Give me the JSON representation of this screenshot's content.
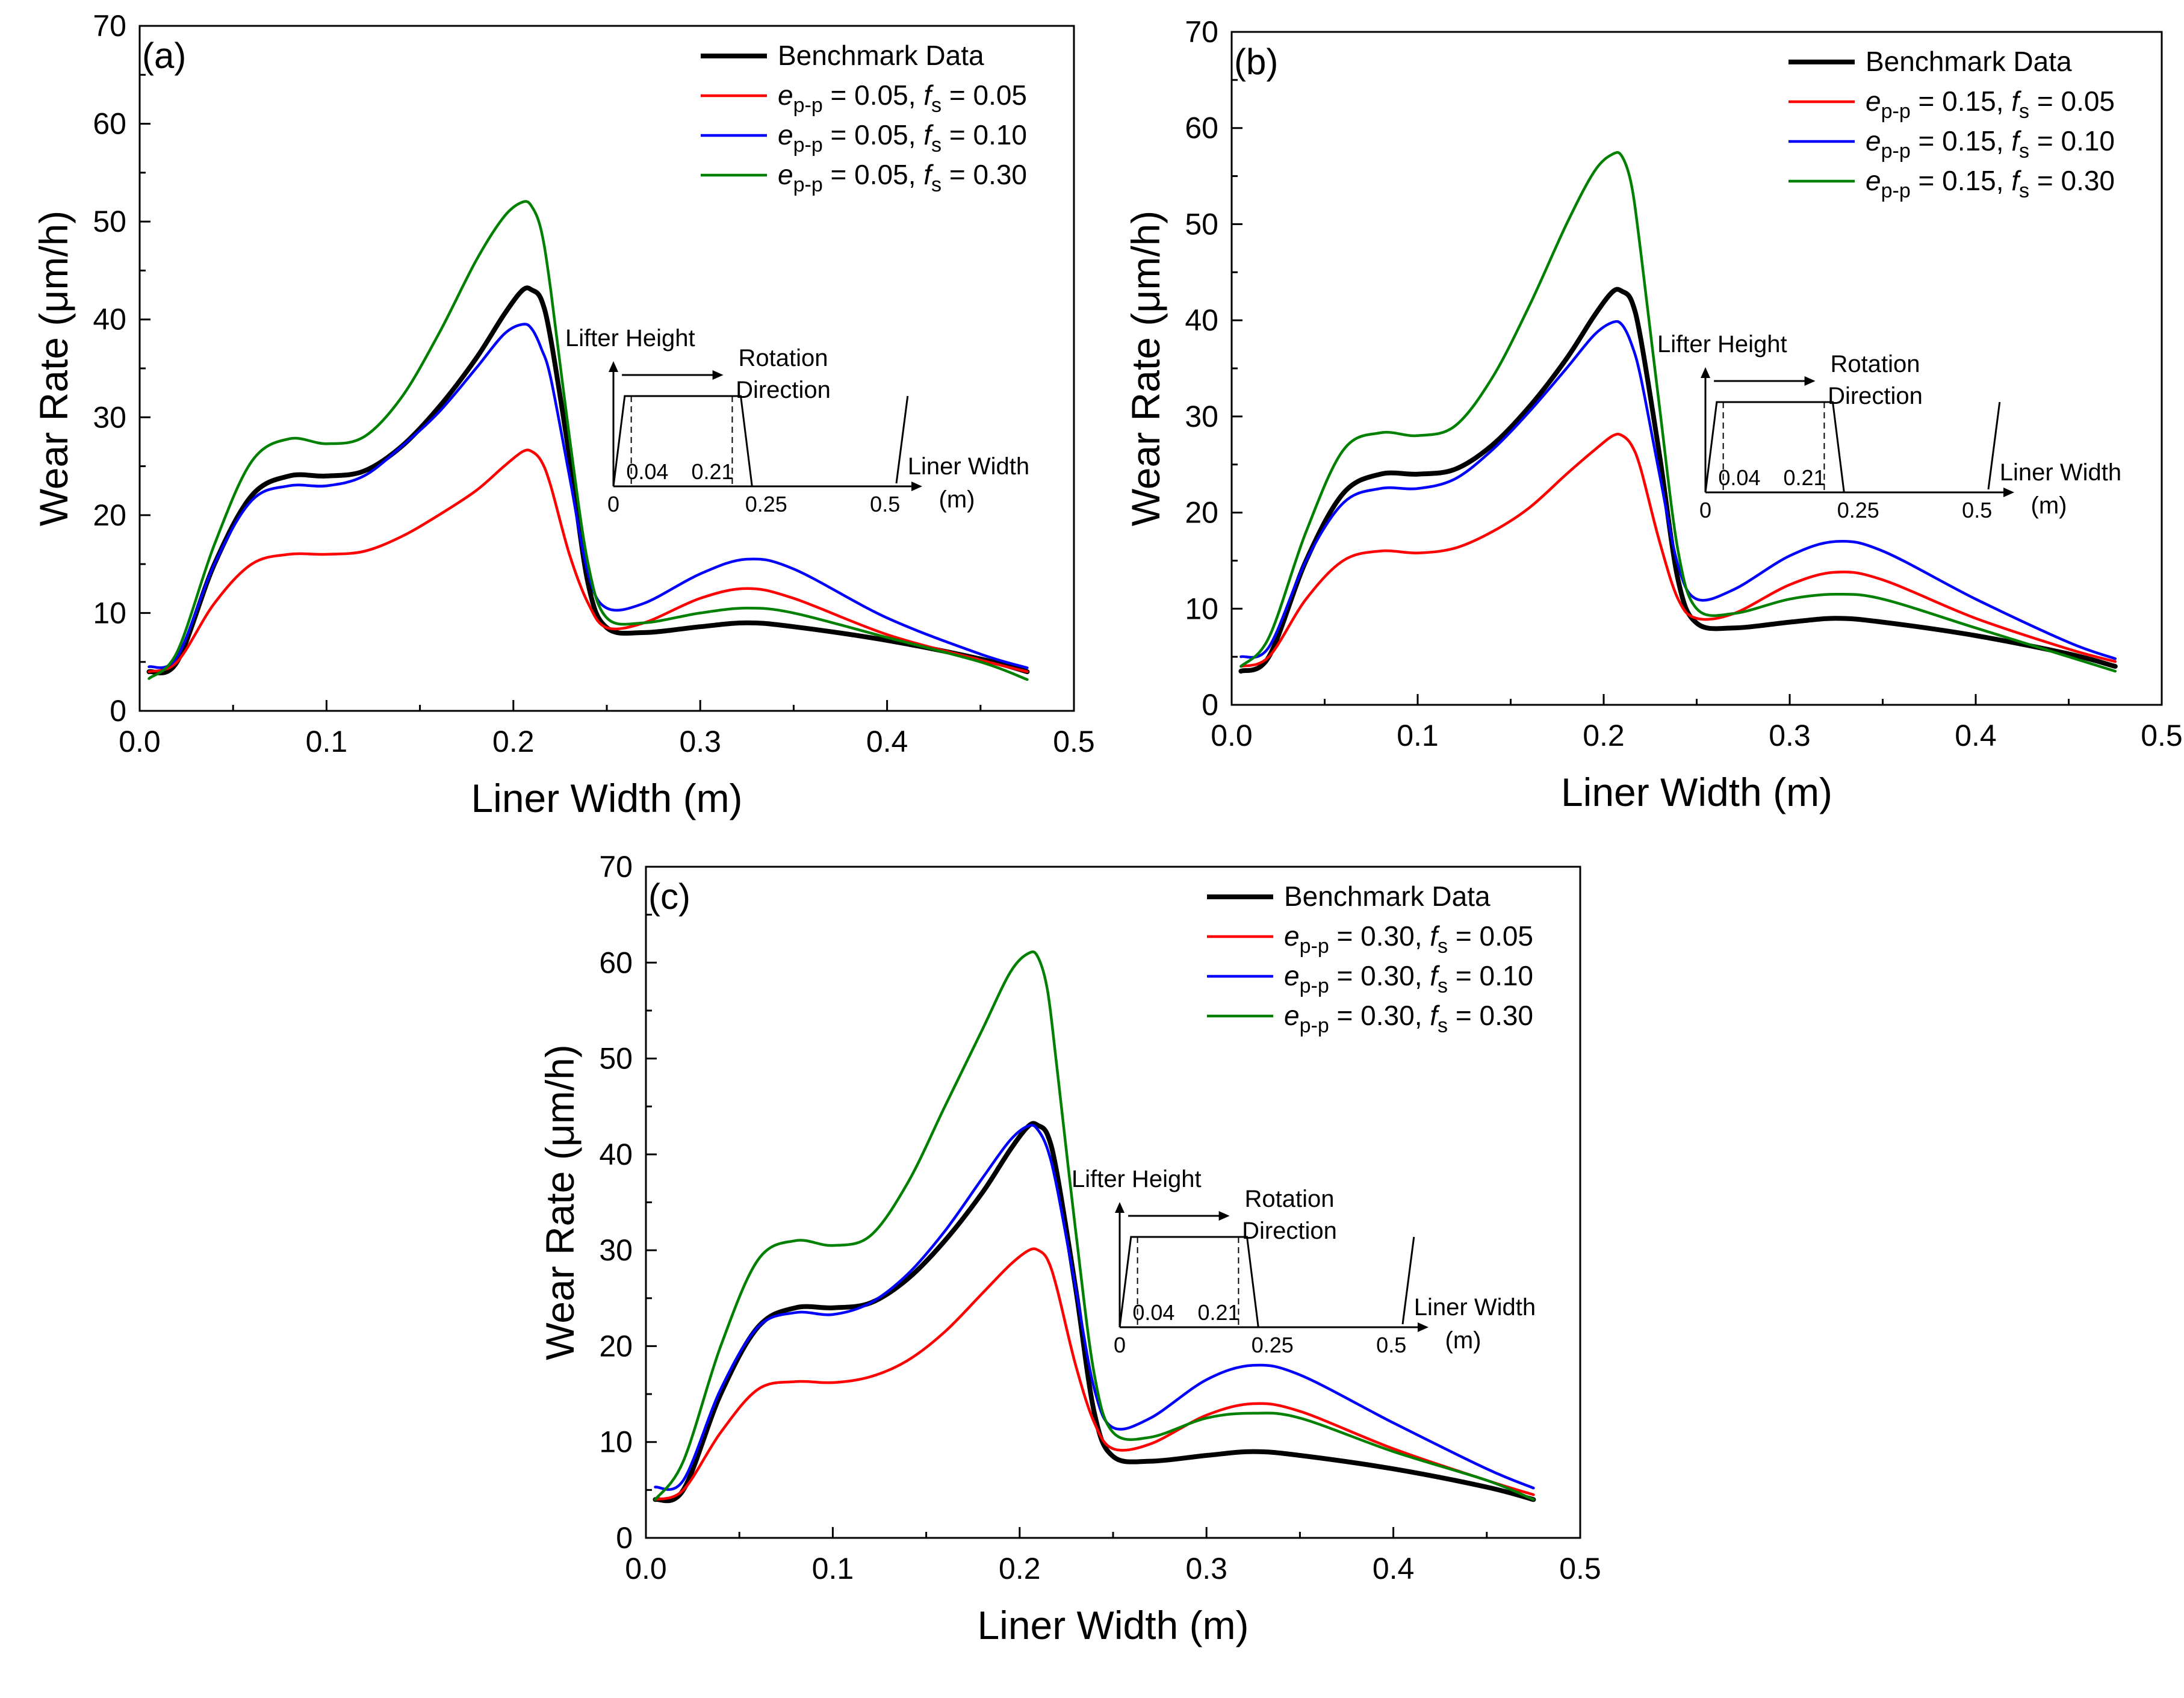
{
  "chart_data": [
    {
      "type": "line",
      "panel_label": "(a)",
      "xlabel": "Liner Width (m)",
      "ylabel": "Wear Rate (μm/h)",
      "xlim": [
        0,
        0.5
      ],
      "ylim": [
        0,
        70
      ],
      "x_ticks": [
        "0.0",
        "0.1",
        "0.2",
        "0.3",
        "0.4",
        "0.5"
      ],
      "y_ticks": [
        "0",
        "10",
        "20",
        "30",
        "40",
        "50",
        "60",
        "70"
      ],
      "legend_position": "top-right",
      "series": [
        {
          "name": "Benchmark Data",
          "e_value": "",
          "fs_value": "",
          "color": "#000000",
          "x": [
            0.005,
            0.02,
            0.04,
            0.06,
            0.08,
            0.1,
            0.12,
            0.14,
            0.16,
            0.18,
            0.195,
            0.205,
            0.21,
            0.215,
            0.22,
            0.23,
            0.24,
            0.25,
            0.27,
            0.3,
            0.325,
            0.35,
            0.4,
            0.45,
            0.475
          ],
          "y": [
            4,
            5,
            15,
            22,
            24,
            24,
            24.5,
            27,
            31,
            36,
            40.5,
            43,
            43,
            42,
            38,
            26,
            13,
            8.5,
            8,
            8.6,
            9,
            8.6,
            7.2,
            5.3,
            4
          ]
        },
        {
          "name": "",
          "e_value": "0.05",
          "fs_value": "0.05",
          "color": "#ff0000",
          "x": [
            0.005,
            0.02,
            0.04,
            0.06,
            0.08,
            0.1,
            0.12,
            0.14,
            0.16,
            0.18,
            0.195,
            0.205,
            0.21,
            0.215,
            0.22,
            0.23,
            0.24,
            0.25,
            0.27,
            0.3,
            0.325,
            0.35,
            0.4,
            0.45,
            0.475
          ],
          "y": [
            4,
            5,
            11,
            15,
            16,
            16,
            16.3,
            17.8,
            20,
            22.5,
            25,
            26.5,
            26.5,
            25.5,
            23,
            16,
            11,
            8.5,
            9,
            11.5,
            12.5,
            11.5,
            7.8,
            5.2,
            4
          ]
        },
        {
          "name": "",
          "e_value": "0.05",
          "fs_value": "0.10",
          "color": "#0000ff",
          "x": [
            0.005,
            0.02,
            0.04,
            0.06,
            0.08,
            0.1,
            0.12,
            0.14,
            0.16,
            0.18,
            0.195,
            0.205,
            0.21,
            0.215,
            0.22,
            0.23,
            0.24,
            0.25,
            0.27,
            0.3,
            0.325,
            0.35,
            0.4,
            0.45,
            0.475
          ],
          "y": [
            4.5,
            5.5,
            15,
            21.5,
            23,
            23,
            24,
            27,
            30.5,
            35,
            38.5,
            39.5,
            39,
            37,
            34,
            24,
            14,
            10.5,
            11,
            14,
            15.5,
            14.5,
            9.5,
            5.8,
            4.4
          ]
        },
        {
          "name": "",
          "e_value": "0.05",
          "fs_value": "0.30",
          "color": "#008000",
          "x": [
            0.005,
            0.02,
            0.04,
            0.06,
            0.08,
            0.1,
            0.12,
            0.14,
            0.16,
            0.18,
            0.195,
            0.205,
            0.21,
            0.215,
            0.22,
            0.23,
            0.24,
            0.25,
            0.27,
            0.3,
            0.325,
            0.35,
            0.4,
            0.45,
            0.475
          ],
          "y": [
            3.3,
            6,
            17,
            25.5,
            27.8,
            27.3,
            28,
            32,
            38.5,
            46,
            50.5,
            52,
            51.5,
            49,
            43,
            28,
            15,
            9.5,
            9,
            10,
            10.5,
            10,
            7.5,
            5,
            3.2
          ]
        }
      ],
      "inset": {
        "ylabel": "Lifter Height",
        "arrow_label_1": "Rotation",
        "arrow_label_2": "Direction",
        "xlabel_1": "Liner Width",
        "xlabel_2": "(m)",
        "tick_0": "0",
        "tick_004": "0.04",
        "tick_021": "0.21",
        "tick_025": "0.25",
        "tick_05": "0.5"
      }
    },
    {
      "type": "line",
      "panel_label": "(b)",
      "xlabel": "Liner Width (m)",
      "ylabel": "Wear Rate (μm/h)",
      "xlim": [
        0,
        0.5
      ],
      "ylim": [
        0,
        70
      ],
      "x_ticks": [
        "0.0",
        "0.1",
        "0.2",
        "0.3",
        "0.4",
        "0.5"
      ],
      "y_ticks": [
        "0",
        "10",
        "20",
        "30",
        "40",
        "50",
        "60",
        "70"
      ],
      "legend_position": "top-right",
      "series": [
        {
          "name": "Benchmark Data",
          "e_value": "",
          "fs_value": "",
          "color": "#000000",
          "x": [
            0.005,
            0.02,
            0.04,
            0.06,
            0.08,
            0.1,
            0.12,
            0.14,
            0.16,
            0.18,
            0.195,
            0.205,
            0.21,
            0.215,
            0.22,
            0.23,
            0.24,
            0.25,
            0.27,
            0.3,
            0.325,
            0.35,
            0.4,
            0.45,
            0.475
          ],
          "y": [
            3.5,
            5,
            15,
            22,
            24,
            24,
            24.5,
            27,
            31,
            36,
            40.5,
            43,
            43,
            42,
            38,
            26,
            13,
            8.5,
            8,
            8.6,
            9,
            8.6,
            7.2,
            5.3,
            4
          ]
        },
        {
          "name": "",
          "e_value": "0.15",
          "fs_value": "0.05",
          "color": "#ff0000",
          "x": [
            0.005,
            0.02,
            0.04,
            0.06,
            0.08,
            0.1,
            0.12,
            0.14,
            0.16,
            0.18,
            0.195,
            0.205,
            0.21,
            0.215,
            0.22,
            0.23,
            0.24,
            0.25,
            0.27,
            0.3,
            0.325,
            0.35,
            0.4,
            0.45,
            0.475
          ],
          "y": [
            4,
            5,
            11,
            15,
            16,
            15.8,
            16.3,
            18,
            20.5,
            24,
            26.5,
            28,
            28,
            27,
            24.5,
            17,
            11,
            9,
            9.5,
            12.5,
            13.8,
            13,
            9,
            5.8,
            4.5
          ]
        },
        {
          "name": "",
          "e_value": "0.15",
          "fs_value": "0.10",
          "color": "#0000ff",
          "x": [
            0.005,
            0.02,
            0.04,
            0.06,
            0.08,
            0.1,
            0.12,
            0.14,
            0.16,
            0.18,
            0.195,
            0.205,
            0.21,
            0.215,
            0.22,
            0.23,
            0.24,
            0.25,
            0.27,
            0.3,
            0.325,
            0.35,
            0.4,
            0.45,
            0.475
          ],
          "y": [
            5,
            6,
            15,
            21,
            22.5,
            22.5,
            23.5,
            26.5,
            30.5,
            35,
            38.5,
            39.8,
            39.5,
            37.5,
            34,
            24,
            14.5,
            11,
            12,
            15.5,
            17,
            16,
            11,
            6.5,
            4.8
          ]
        },
        {
          "name": "",
          "e_value": "0.15",
          "fs_value": "0.30",
          "color": "#008000",
          "x": [
            0.005,
            0.02,
            0.04,
            0.06,
            0.08,
            0.1,
            0.12,
            0.14,
            0.16,
            0.18,
            0.195,
            0.205,
            0.21,
            0.215,
            0.22,
            0.23,
            0.24,
            0.25,
            0.27,
            0.3,
            0.325,
            0.35,
            0.4,
            0.45,
            0.475
          ],
          "y": [
            4,
            7,
            18,
            26.5,
            28.3,
            28,
            29,
            34,
            41.5,
            50,
            55.5,
            57.3,
            57,
            54,
            47,
            31,
            16,
            10,
            9.5,
            11,
            11.5,
            11,
            8,
            5,
            3.5
          ]
        }
      ],
      "inset": {
        "ylabel": "Lifter Height",
        "arrow_label_1": "Rotation",
        "arrow_label_2": "Direction",
        "xlabel_1": "Liner Width",
        "xlabel_2": "(m)",
        "tick_0": "0",
        "tick_004": "0.04",
        "tick_021": "0.21",
        "tick_025": "0.25",
        "tick_05": "0.5"
      }
    },
    {
      "type": "line",
      "panel_label": "(c)",
      "xlabel": "Liner Width (m)",
      "ylabel": "Wear Rate (μm/h)",
      "xlim": [
        0,
        0.5
      ],
      "ylim": [
        0,
        70
      ],
      "x_ticks": [
        "0.0",
        "0.1",
        "0.2",
        "0.3",
        "0.4",
        "0.5"
      ],
      "y_ticks": [
        "0",
        "10",
        "20",
        "30",
        "40",
        "50",
        "60",
        "70"
      ],
      "legend_position": "top-right",
      "series": [
        {
          "name": "Benchmark Data",
          "e_value": "",
          "fs_value": "",
          "color": "#000000",
          "x": [
            0.005,
            0.02,
            0.04,
            0.06,
            0.08,
            0.1,
            0.12,
            0.14,
            0.16,
            0.18,
            0.195,
            0.205,
            0.21,
            0.215,
            0.22,
            0.23,
            0.24,
            0.25,
            0.27,
            0.3,
            0.325,
            0.35,
            0.4,
            0.45,
            0.475
          ],
          "y": [
            4,
            5,
            15,
            22,
            24,
            24,
            24.5,
            27,
            31,
            36,
            40.5,
            43,
            43,
            42,
            38,
            26,
            13,
            8.5,
            8,
            8.6,
            9,
            8.6,
            7.2,
            5.3,
            4
          ]
        },
        {
          "name": "",
          "e_value": "0.30",
          "fs_value": "0.05",
          "color": "#ff0000",
          "x": [
            0.005,
            0.02,
            0.04,
            0.06,
            0.08,
            0.1,
            0.12,
            0.14,
            0.16,
            0.18,
            0.195,
            0.205,
            0.21,
            0.215,
            0.22,
            0.23,
            0.24,
            0.25,
            0.27,
            0.3,
            0.325,
            0.35,
            0.4,
            0.45,
            0.475
          ],
          "y": [
            4,
            5,
            11,
            15.5,
            16.3,
            16.2,
            16.8,
            18.5,
            21.5,
            25.5,
            28.5,
            30,
            30,
            29,
            26,
            18,
            12,
            9.3,
            9.8,
            12.8,
            14,
            13.2,
            9.3,
            6,
            4.5
          ]
        },
        {
          "name": "",
          "e_value": "0.30",
          "fs_value": "0.10",
          "color": "#0000ff",
          "x": [
            0.005,
            0.02,
            0.04,
            0.06,
            0.08,
            0.1,
            0.12,
            0.14,
            0.16,
            0.18,
            0.195,
            0.205,
            0.21,
            0.215,
            0.22,
            0.23,
            0.24,
            0.25,
            0.27,
            0.3,
            0.325,
            0.35,
            0.4,
            0.45,
            0.475
          ],
          "y": [
            5.3,
            6,
            15.5,
            22,
            23.5,
            23.3,
            24.5,
            27.5,
            32,
            37.5,
            41.5,
            43,
            42.5,
            40.5,
            36.5,
            26,
            15.5,
            11.5,
            12.5,
            16.5,
            18,
            17,
            12,
            7.2,
            5.2
          ]
        },
        {
          "name": "",
          "e_value": "0.30",
          "fs_value": "0.30",
          "color": "#008000",
          "x": [
            0.005,
            0.02,
            0.04,
            0.06,
            0.08,
            0.1,
            0.12,
            0.14,
            0.16,
            0.18,
            0.195,
            0.205,
            0.21,
            0.215,
            0.22,
            0.23,
            0.24,
            0.25,
            0.27,
            0.3,
            0.325,
            0.35,
            0.4,
            0.45,
            0.475
          ],
          "y": [
            4,
            8,
            20,
            29,
            31,
            30.5,
            31.5,
            37,
            45,
            53,
            59,
            61,
            60.5,
            57,
            49,
            32,
            17,
            11,
            10.5,
            12.5,
            13,
            12.5,
            9,
            6,
            4
          ]
        }
      ],
      "inset": {
        "ylabel": "Lifter Height",
        "arrow_label_1": "Rotation",
        "arrow_label_2": "Direction",
        "xlabel_1": "Liner Width",
        "xlabel_2": "(m)",
        "tick_0": "0",
        "tick_004": "0.04",
        "tick_021": "0.21",
        "tick_025": "0.25",
        "tick_05": "0.5"
      }
    }
  ]
}
